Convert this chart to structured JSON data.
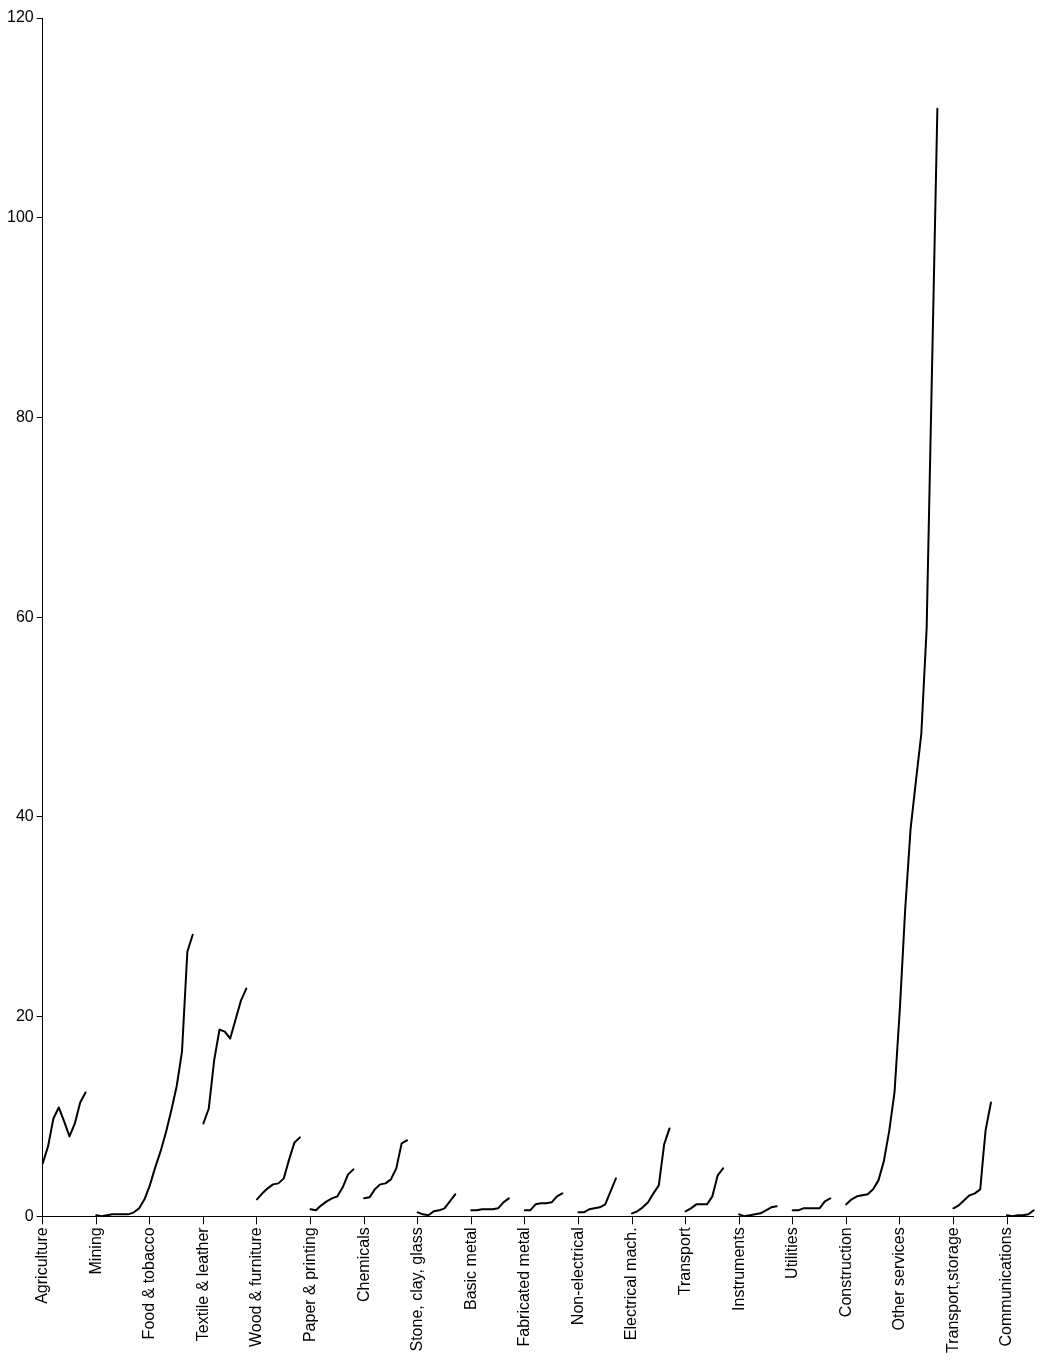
{
  "chart_data": {
    "type": "line",
    "ylim": [
      0,
      120
    ],
    "yticks": [
      0,
      20,
      40,
      60,
      80,
      100,
      120
    ],
    "grid": false,
    "legend": false,
    "marker": "none",
    "categories": [
      "Agriculture",
      null,
      null,
      null,
      null,
      null,
      null,
      null,
      null,
      null,
      "Mining",
      null,
      null,
      null,
      null,
      null,
      null,
      null,
      null,
      null,
      "Food & tobacco",
      null,
      null,
      null,
      null,
      null,
      null,
      null,
      null,
      null,
      "Textile & leather",
      null,
      null,
      null,
      null,
      null,
      null,
      null,
      null,
      null,
      "Wood & furniture",
      null,
      null,
      null,
      null,
      null,
      null,
      null,
      null,
      null,
      "Paper & printing",
      null,
      null,
      null,
      null,
      null,
      null,
      null,
      null,
      null,
      "Chemicals",
      null,
      null,
      null,
      null,
      null,
      null,
      null,
      null,
      null,
      "Stone, clay, glass",
      null,
      null,
      null,
      null,
      null,
      null,
      null,
      null,
      null,
      "Basic metal",
      null,
      null,
      null,
      null,
      null,
      null,
      null,
      null,
      null,
      "Fabricated metal",
      null,
      null,
      null,
      null,
      null,
      null,
      null,
      null,
      null,
      "Non-electrical",
      null,
      null,
      null,
      null,
      null,
      null,
      null,
      null,
      null,
      "Electrical mach.",
      null,
      null,
      null,
      null,
      null,
      null,
      null,
      null,
      null,
      "Transport",
      null,
      null,
      null,
      null,
      null,
      null,
      null,
      null,
      null,
      "Instruments",
      null,
      null,
      null,
      null,
      null,
      null,
      null,
      null,
      null,
      "Utilities",
      null,
      null,
      null,
      null,
      null,
      null,
      null,
      null,
      null,
      "Construction",
      null,
      null,
      null,
      null,
      null,
      null,
      null,
      null,
      null,
      "Other services",
      null,
      null,
      null,
      null,
      null,
      null,
      null,
      null,
      null,
      "Transport,storage",
      null,
      null,
      null,
      null,
      null,
      null,
      null,
      null,
      null,
      "Communications",
      null,
      null,
      null,
      null,
      null
    ],
    "series": [
      {
        "color": "#000000",
        "values": [
          5.3,
          7.0,
          9.8,
          10.9,
          9.5,
          8.0,
          9.3,
          11.4,
          12.4,
          null,
          0.1,
          0,
          0.1,
          0.2,
          0.2,
          0.2,
          0.2,
          0.4,
          0.8,
          1.7,
          3.1,
          4.9,
          6.5,
          8.4,
          10.6,
          13.0,
          16.5,
          26.5,
          28.2,
          null,
          9.3,
          10.8,
          15.6,
          18.7,
          18.5,
          17.8,
          19.7,
          21.6,
          22.8,
          null,
          1.7,
          2.3,
          2.8,
          3.2,
          3.3,
          3.8,
          5.7,
          7.4,
          7.9,
          null,
          0.7,
          0.6,
          1.1,
          1.5,
          1.8,
          2.0,
          2.9,
          4.2,
          4.7,
          null,
          1.8,
          1.9,
          2.7,
          3.2,
          3.3,
          3.7,
          4.8,
          7.3,
          7.6,
          null,
          0.4,
          0.2,
          0.1,
          0.5,
          0.6,
          0.8,
          1.5,
          2.2,
          null,
          null,
          0.6,
          0.6,
          0.7,
          0.7,
          0.7,
          0.8,
          1.4,
          1.8,
          null,
          null,
          0.6,
          0.6,
          1.2,
          1.3,
          1.3,
          1.4,
          2.0,
          2.3,
          null,
          null,
          0.4,
          0.4,
          0.7,
          0.8,
          0.9,
          1.2,
          2.5,
          3.8,
          null,
          null,
          0.3,
          0.5,
          0.9,
          1.4,
          2.3,
          3.1,
          7.2,
          8.8,
          null,
          null,
          0.5,
          0.8,
          1.2,
          1.2,
          1.2,
          2.0,
          4.1,
          4.8,
          null,
          null,
          0.2,
          0,
          0.1,
          0.2,
          0.3,
          0.6,
          0.9,
          1.0,
          null,
          null,
          0.6,
          0.6,
          0.8,
          0.8,
          0.8,
          0.8,
          1.5,
          1.8,
          null,
          null,
          1.2,
          1.7,
          2.0,
          2.1,
          2.2,
          2.7,
          3.6,
          5.5,
          8.5,
          12.4,
          20.8,
          30.8,
          38.8,
          43.6,
          48.3,
          58.9,
          84.8,
          110.9,
          null,
          null,
          0.8,
          1.1,
          1.6,
          2.1,
          2.3,
          2.7,
          8.6,
          11.4,
          null,
          null,
          0.1,
          0,
          0.1,
          0.1,
          0.2,
          0.6
        ]
      }
    ]
  }
}
